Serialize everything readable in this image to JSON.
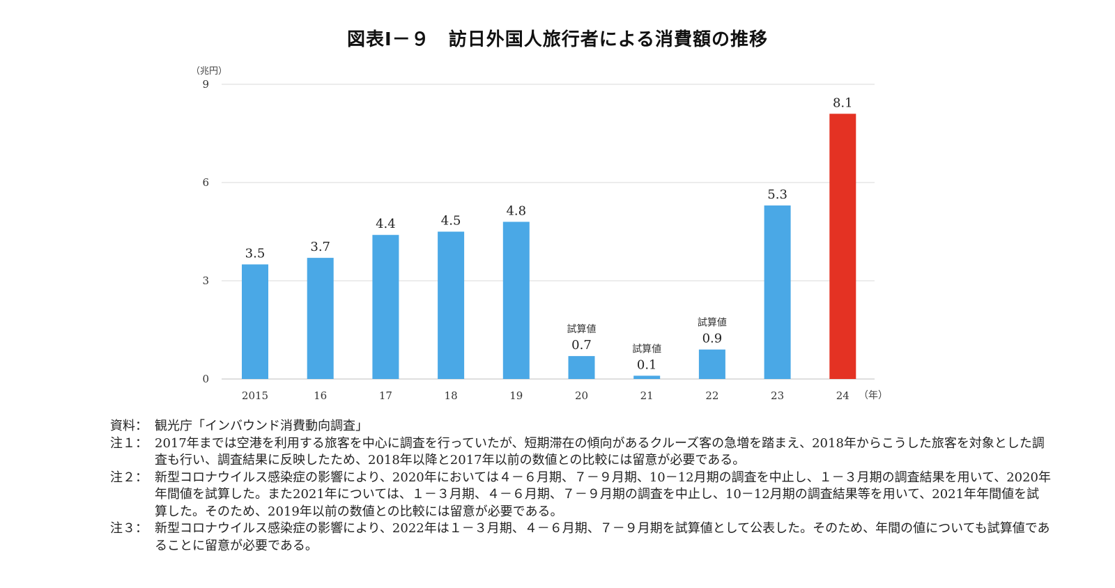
{
  "title": "図表Ⅰ－９　訪日外国人旅行者による消費額の推移",
  "colors": {
    "bar": "#4aa8e6",
    "highlight": "#e43223",
    "grid": "#d9d9d9",
    "axis": "#bfbfbf"
  },
  "chart_data": {
    "type": "bar",
    "unit_label": "（兆円）",
    "x_unit_label": "（年）",
    "categories": [
      "2015",
      "16",
      "17",
      "18",
      "19",
      "20",
      "21",
      "22",
      "23",
      "24"
    ],
    "values": [
      3.5,
      3.7,
      4.4,
      4.5,
      4.8,
      0.7,
      0.1,
      0.9,
      5.3,
      8.1
    ],
    "value_labels": [
      "3.5",
      "3.7",
      "4.4",
      "4.5",
      "4.8",
      "0.7",
      "0.1",
      "0.9",
      "5.3",
      "8.1"
    ],
    "annotations": [
      "",
      "",
      "",
      "",
      "",
      "試算値",
      "試算値",
      "試算値",
      "",
      ""
    ],
    "highlight_index": 9,
    "ylim": [
      0,
      9
    ],
    "yticks": [
      0,
      3,
      6,
      9
    ],
    "grid": true,
    "legend": "none"
  },
  "notes": [
    {
      "label": "資料：",
      "text": "観光庁「インバウンド消費動向調査」"
    },
    {
      "label": "注１：",
      "text": "2017年までは空港を利用する旅客を中心に調査を行っていたが、短期滞在の傾向があるクルーズ客の急増を踏まえ、2018年からこうした旅客を対象とした調査も行い、調査結果に反映したため、2018年以降と2017年以前の数値との比較には留意が必要である。"
    },
    {
      "label": "注２：",
      "text": "新型コロナウイルス感染症の影響により、2020年においては４－６月期、７－９月期、10－12月期の調査を中止し、１－３月期の調査結果を用いて、2020年年間値を試算した。また2021年については、１－３月期、４－６月期、７－９月期の調査を中止し、10－12月期の調査結果等を用いて、2021年年間値を試算した。そのため、2019年以前の数値との比較には留意が必要である。"
    },
    {
      "label": "注３：",
      "text": "新型コロナウイルス感染症の影響により、2022年は１－３月期、４－６月期、７－９月期を試算値として公表した。そのため、年間の値についても試算値であることに留意が必要である。"
    }
  ]
}
